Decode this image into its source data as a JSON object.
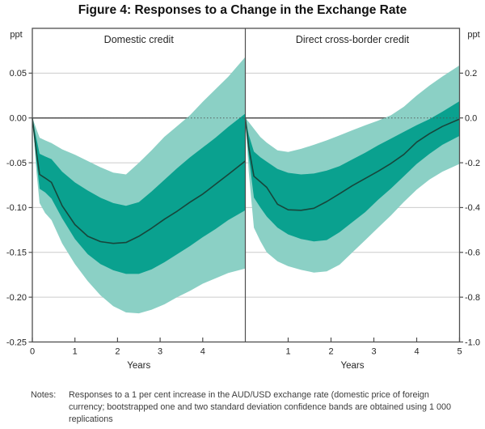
{
  "figure": {
    "title": "Figure 4: Responses to a Change in the Exchange Rate",
    "notes_label": "Notes:",
    "notes_text": "Responses to a 1 per cent increase in the AUD/USD exchange rate (domestic price of foreign currency; bootstrapped one and two standard deviation confidence bands are obtained using 1 000 replications"
  },
  "colors": {
    "band_two_sd": "#8bd0c5",
    "band_one_sd": "#0aa18f",
    "central_line": "#17463b",
    "zero_line": "#4f4f4f",
    "gridline": "#cccccc",
    "frame": "#4f4f4f",
    "tick_text": "#262626",
    "notes_text": "#3c3c3c"
  },
  "chart_data": {
    "type": "area",
    "subtype": "fan-chart-two-panels",
    "title": "Figure 4: Responses to a Change in the Exchange Rate",
    "xlabel": "Years",
    "unit_label": "ppt",
    "grid": true,
    "legend": "none (bands described in notes: one and two standard deviation confidence bands)",
    "panels": [
      {
        "title": "Domestic credit",
        "axis_side": "left",
        "ylim": [
          -0.25,
          0.1
        ],
        "xlim": [
          0,
          5
        ],
        "yticks": [
          0.05,
          0.0,
          -0.05,
          -0.1,
          -0.15,
          -0.2,
          -0.25
        ],
        "ytick_labels": [
          "0.05",
          "0.00",
          "-0.05",
          "-0.10",
          "-0.15",
          "-0.20",
          "-0.25"
        ],
        "xticks": [
          0,
          1,
          2,
          3,
          4
        ],
        "x": [
          0,
          0.1,
          0.17,
          0.3,
          0.45,
          0.7,
          1.0,
          1.3,
          1.6,
          1.9,
          2.2,
          2.5,
          2.8,
          3.1,
          3.4,
          3.7,
          4.0,
          4.3,
          4.6,
          5.0
        ],
        "central": [
          0,
          -0.04,
          -0.063,
          -0.067,
          -0.072,
          -0.098,
          -0.119,
          -0.132,
          -0.138,
          -0.14,
          -0.139,
          -0.132,
          -0.123,
          -0.113,
          -0.104,
          -0.094,
          -0.085,
          -0.074,
          -0.063,
          -0.048
        ],
        "band1_upper": [
          0,
          -0.024,
          -0.04,
          -0.043,
          -0.046,
          -0.06,
          -0.072,
          -0.081,
          -0.089,
          -0.095,
          -0.098,
          -0.094,
          -0.082,
          -0.069,
          -0.056,
          -0.044,
          -0.033,
          -0.022,
          -0.01,
          0.005
        ],
        "band1_lower": [
          0,
          -0.05,
          -0.079,
          -0.083,
          -0.09,
          -0.112,
          -0.135,
          -0.152,
          -0.163,
          -0.17,
          -0.174,
          -0.174,
          -0.169,
          -0.161,
          -0.152,
          -0.143,
          -0.133,
          -0.124,
          -0.114,
          -0.103
        ],
        "band2_upper": [
          0,
          -0.013,
          -0.022,
          -0.025,
          -0.028,
          -0.035,
          -0.041,
          -0.048,
          -0.055,
          -0.061,
          -0.063,
          -0.05,
          -0.036,
          -0.021,
          -0.009,
          0.003,
          0.018,
          0.032,
          0.046,
          0.068
        ],
        "band2_lower": [
          0,
          -0.062,
          -0.095,
          -0.106,
          -0.114,
          -0.14,
          -0.163,
          -0.182,
          -0.198,
          -0.21,
          -0.217,
          -0.218,
          -0.214,
          -0.208,
          -0.2,
          -0.193,
          -0.185,
          -0.179,
          -0.173,
          -0.168
        ]
      },
      {
        "title": "Direct cross-border credit",
        "axis_side": "right",
        "ylim": [
          -1.0,
          0.4
        ],
        "xlim": [
          0,
          5
        ],
        "yticks": [
          0.2,
          0.0,
          -0.2,
          -0.4,
          -0.6,
          -0.8,
          -1.0
        ],
        "ytick_labels": [
          "0.2",
          "0.0",
          "-0.2",
          "-0.4",
          "-0.6",
          "-0.8",
          "-1.0"
        ],
        "xticks": [
          1,
          2,
          3,
          4,
          5
        ],
        "x": [
          0,
          0.08,
          0.2,
          0.35,
          0.5,
          0.75,
          1.0,
          1.3,
          1.6,
          1.9,
          2.2,
          2.5,
          2.8,
          3.1,
          3.4,
          3.7,
          4.0,
          4.3,
          4.6,
          5.0
        ],
        "central": [
          0,
          -0.13,
          -0.26,
          -0.285,
          -0.31,
          -0.385,
          -0.41,
          -0.412,
          -0.403,
          -0.373,
          -0.338,
          -0.302,
          -0.27,
          -0.238,
          -0.203,
          -0.163,
          -0.108,
          -0.07,
          -0.038,
          -0.005
        ],
        "band1_upper": [
          0,
          -0.075,
          -0.15,
          -0.175,
          -0.195,
          -0.228,
          -0.245,
          -0.252,
          -0.248,
          -0.235,
          -0.215,
          -0.185,
          -0.155,
          -0.122,
          -0.092,
          -0.062,
          -0.032,
          -0.005,
          0.028,
          0.075
        ],
        "band1_lower": [
          0,
          -0.17,
          -0.355,
          -0.4,
          -0.44,
          -0.49,
          -0.52,
          -0.54,
          -0.551,
          -0.545,
          -0.51,
          -0.465,
          -0.42,
          -0.365,
          -0.315,
          -0.26,
          -0.205,
          -0.16,
          -0.12,
          -0.08
        ],
        "band2_upper": [
          0,
          -0.018,
          -0.048,
          -0.085,
          -0.11,
          -0.145,
          -0.152,
          -0.138,
          -0.12,
          -0.1,
          -0.078,
          -0.055,
          -0.033,
          -0.012,
          0.012,
          0.05,
          0.1,
          0.145,
          0.185,
          0.235
        ],
        "band2_lower": [
          0,
          -0.24,
          -0.49,
          -0.55,
          -0.6,
          -0.64,
          -0.662,
          -0.678,
          -0.69,
          -0.685,
          -0.655,
          -0.6,
          -0.545,
          -0.49,
          -0.435,
          -0.375,
          -0.32,
          -0.275,
          -0.24,
          -0.205
        ]
      }
    ]
  }
}
